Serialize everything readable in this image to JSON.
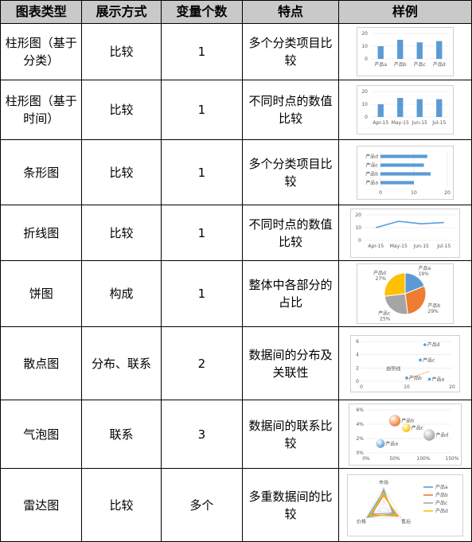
{
  "headers": [
    "图表类型",
    "展示方式",
    "变量个数",
    "特点",
    "样例"
  ],
  "rows": [
    {
      "type": "柱形图（基于分类）",
      "display": "比较",
      "vars": "1",
      "feature": "多个分类项目比较"
    },
    {
      "type": "柱形图（基于时间）",
      "display": "比较",
      "vars": "1",
      "feature": "不同时点的数值比较"
    },
    {
      "type": "条形图",
      "display": "比较",
      "vars": "1",
      "feature": "多个分类项目比较"
    },
    {
      "type": "折线图",
      "display": "比较",
      "vars": "1",
      "feature": "不同时点的数值比较"
    },
    {
      "type": "饼图",
      "display": "构成",
      "vars": "1",
      "feature": "整体中各部分的占比"
    },
    {
      "type": "散点图",
      "display": "分布、联系",
      "vars": "2",
      "feature": "数据间的分布及关联性"
    },
    {
      "type": "气泡图",
      "display": "联系",
      "vars": "3",
      "feature": "数据间的联系比较"
    },
    {
      "type": "雷达图",
      "display": "比较",
      "vars": "多个",
      "feature": "多重数据间的比较"
    }
  ],
  "colors": {
    "header_bg": "#c9c9c9",
    "blue": "#5b9bd5",
    "orange": "#ed7d31",
    "gray": "#a5a5a5",
    "yellow": "#ffc000"
  },
  "chart_data": [
    {
      "type": "bar",
      "categories": [
        "产品a",
        "产品b",
        "产品c",
        "产品d"
      ],
      "values": [
        10,
        15,
        13,
        14
      ],
      "ylim": [
        0,
        20
      ],
      "yticks": [
        "0",
        "10",
        "20"
      ]
    },
    {
      "type": "bar",
      "categories": [
        "Apr-15",
        "May-15",
        "Jun-15",
        "Jul-15"
      ],
      "values": [
        10,
        15,
        14,
        14
      ],
      "ylim": [
        0,
        20
      ],
      "yticks": [
        "0",
        "10",
        "20"
      ]
    },
    {
      "type": "bar",
      "orientation": "horizontal",
      "categories": [
        "产品d",
        "产品c",
        "产品b",
        "产品a"
      ],
      "values": [
        14,
        13,
        15,
        10
      ],
      "xlim": [
        0,
        20
      ],
      "xticks": [
        "0",
        "10",
        "20"
      ]
    },
    {
      "type": "line",
      "categories": [
        "Apr-15",
        "May-15",
        "Jun-15",
        "Jul-15"
      ],
      "values": [
        10,
        15,
        13,
        14
      ],
      "ylim": [
        0,
        20
      ],
      "yticks": [
        "0",
        "10",
        "20"
      ]
    },
    {
      "type": "pie",
      "slices": [
        {
          "name": "产品a",
          "value": 19,
          "pct": "19%"
        },
        {
          "name": "产品b",
          "value": 29,
          "pct": "29%"
        },
        {
          "name": "产品c",
          "value": 25,
          "pct": "25%"
        },
        {
          "name": "产品d",
          "value": 27,
          "pct": "27%"
        }
      ]
    },
    {
      "type": "scatter",
      "points": [
        {
          "name": "产品a",
          "x": 15,
          "y": 0.3
        },
        {
          "name": "产品b",
          "x": 10,
          "y": 0.5
        },
        {
          "name": "产品c",
          "x": 13,
          "y": 3.2
        },
        {
          "name": "产品d",
          "x": 14,
          "y": 5.5
        }
      ],
      "annotation": "趋势线",
      "xlim": [
        0,
        20
      ],
      "ylim": [
        0,
        6
      ],
      "xticks": [
        "0",
        "10",
        "20"
      ],
      "yticks": [
        "0",
        "2",
        "4",
        "6"
      ]
    },
    {
      "type": "bubble",
      "points": [
        {
          "name": "产品a",
          "x": 25,
          "y": 1.3,
          "size": 3
        },
        {
          "name": "产品b",
          "x": 50,
          "y": 4.5,
          "size": 4
        },
        {
          "name": "产品c",
          "x": 70,
          "y": 3.5,
          "size": 3
        },
        {
          "name": "产品d",
          "x": 110,
          "y": 2.5,
          "size": 4
        }
      ],
      "xlim": [
        0,
        150
      ],
      "ylim": [
        0,
        6
      ],
      "xticks": [
        "0%",
        "50%",
        "100%",
        "150%"
      ],
      "yticks": [
        "0%",
        "2%",
        "4%",
        "6%"
      ]
    },
    {
      "type": "radar",
      "axes": [
        "市场",
        "售后",
        "价格"
      ],
      "series": [
        {
          "name": "产品a",
          "values": [
            8,
            6,
            9
          ]
        },
        {
          "name": "产品b",
          "values": [
            6,
            8,
            7
          ]
        },
        {
          "name": "产品c",
          "values": [
            9,
            5,
            6
          ]
        },
        {
          "name": "产品d",
          "values": [
            7,
            7,
            8
          ]
        }
      ],
      "max": 10
    }
  ]
}
